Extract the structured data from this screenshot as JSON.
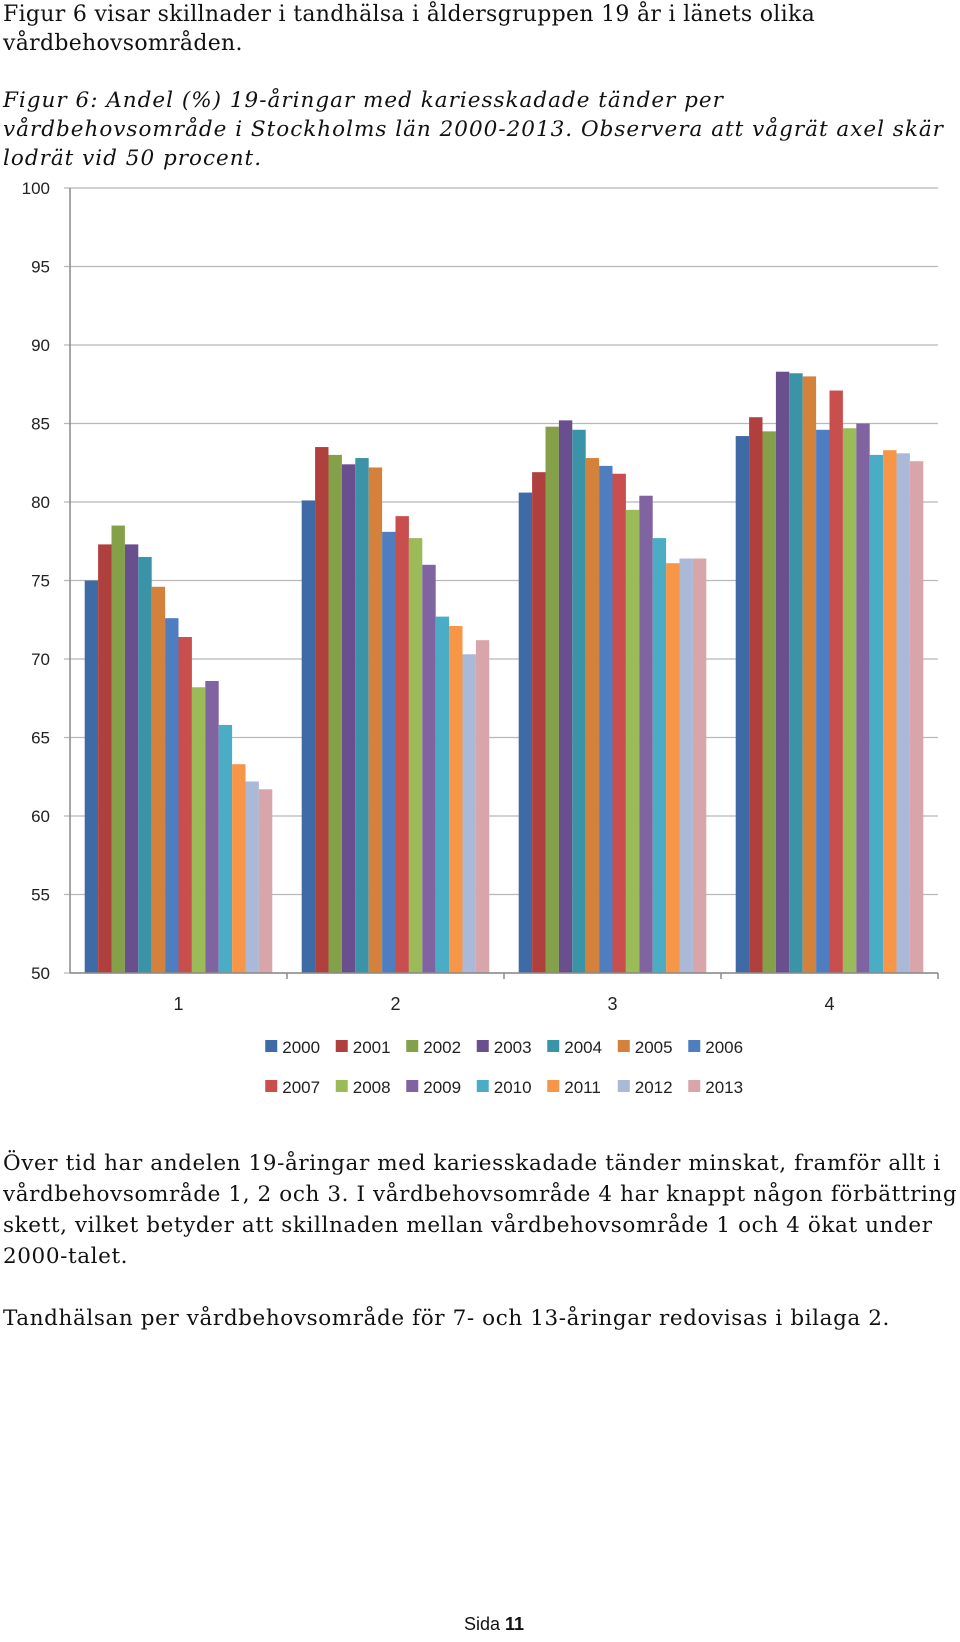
{
  "intro_text": "Figur 6 visar skillnader i tandhälsa i åldersgruppen 19 år i länets olika vårdbehovsområden.",
  "figure_caption": "Figur 6: Andel (%) 19-åringar med kariesskadade tänder per vårdbehovsområde i Stockholms län 2000-2013. Observera att vågrät axel skär lodrät vid 50 procent.",
  "paragraph_1": "Över tid har andelen 19-åringar med kariesskadade tänder minskat, framför allt i vårdbehovsområde 1, 2 och 3. I vårdbehovsområde 4 har knappt någon förbättring skett, vilket betyder att skillnaden mellan vårdbehovsområde 1 och 4 ökat under 2000-talet.",
  "paragraph_2": "Tandhälsan per vårdbehovsområde för 7- och 13-åringar redovisas i bilaga 2.",
  "footer": {
    "label": "Sida",
    "number": "11"
  },
  "chart_data": {
    "type": "bar",
    "title": "",
    "xlabel": "",
    "ylabel": "",
    "ylim": [
      50,
      100
    ],
    "yticks": [
      50,
      55,
      60,
      65,
      70,
      75,
      80,
      85,
      90,
      95,
      100
    ],
    "grid": true,
    "legend_position": "bottom",
    "categories": [
      "1",
      "2",
      "3",
      "4"
    ],
    "series": [
      {
        "name": "2000",
        "color": "#3e6aa5",
        "values": [
          75.0,
          80.1,
          80.6,
          84.2
        ]
      },
      {
        "name": "2001",
        "color": "#b0403e",
        "values": [
          77.3,
          83.5,
          81.9,
          85.4
        ]
      },
      {
        "name": "2002",
        "color": "#84a14a",
        "values": [
          78.5,
          83.0,
          84.8,
          84.5
        ]
      },
      {
        "name": "2003",
        "color": "#6a4f8f",
        "values": [
          77.3,
          82.4,
          85.2,
          88.3
        ]
      },
      {
        "name": "2004",
        "color": "#3b93a8",
        "values": [
          76.5,
          82.8,
          84.6,
          88.2
        ]
      },
      {
        "name": "2005",
        "color": "#d3813b",
        "values": [
          74.6,
          82.2,
          82.8,
          88.0
        ]
      },
      {
        "name": "2006",
        "color": "#4f7ec0",
        "values": [
          72.6,
          78.1,
          82.3,
          84.6
        ]
      },
      {
        "name": "2007",
        "color": "#c84f4d",
        "values": [
          71.4,
          79.1,
          81.8,
          87.1
        ]
      },
      {
        "name": "2008",
        "color": "#9bbb59",
        "values": [
          68.2,
          77.7,
          79.5,
          84.7
        ]
      },
      {
        "name": "2009",
        "color": "#8064a2",
        "values": [
          68.6,
          76.0,
          80.4,
          85.0
        ]
      },
      {
        "name": "2010",
        "color": "#4bacc6",
        "values": [
          65.8,
          72.7,
          77.7,
          83.0
        ]
      },
      {
        "name": "2011",
        "color": "#f79646",
        "values": [
          63.3,
          72.1,
          76.1,
          83.3
        ]
      },
      {
        "name": "2012",
        "color": "#aab9d8",
        "values": [
          62.2,
          70.3,
          76.4,
          83.1
        ]
      },
      {
        "name": "2013",
        "color": "#d8a6aa",
        "values": [
          61.7,
          71.2,
          76.4,
          82.6
        ]
      }
    ]
  }
}
